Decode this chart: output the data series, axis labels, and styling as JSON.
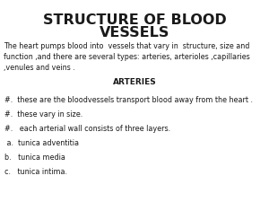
{
  "title_line1": "STRUCTURE OF BLOOD",
  "title_line2": "VESSELS",
  "intro": "The heart pumps blood into  vessels that vary in  structure, size and\nfunction ,and there are several types: arteries, arterioles ,capillaries\n,venules and veins .",
  "section": "ARTERIES",
  "bullets": [
    "#.  these are the bloodvessels transport blood away from the heart .",
    "#.  these vary in size.",
    "#.   each arterial wall consists of three layers.",
    " a.  tunica adventitia",
    "b.   tunica media",
    "c.   tunica intima."
  ],
  "bg_color": "#ffffff",
  "text_color": "#1a1a1a",
  "title_fontsize": 11.5,
  "intro_fontsize": 5.8,
  "section_fontsize": 6.5,
  "bullet_fontsize": 5.8
}
